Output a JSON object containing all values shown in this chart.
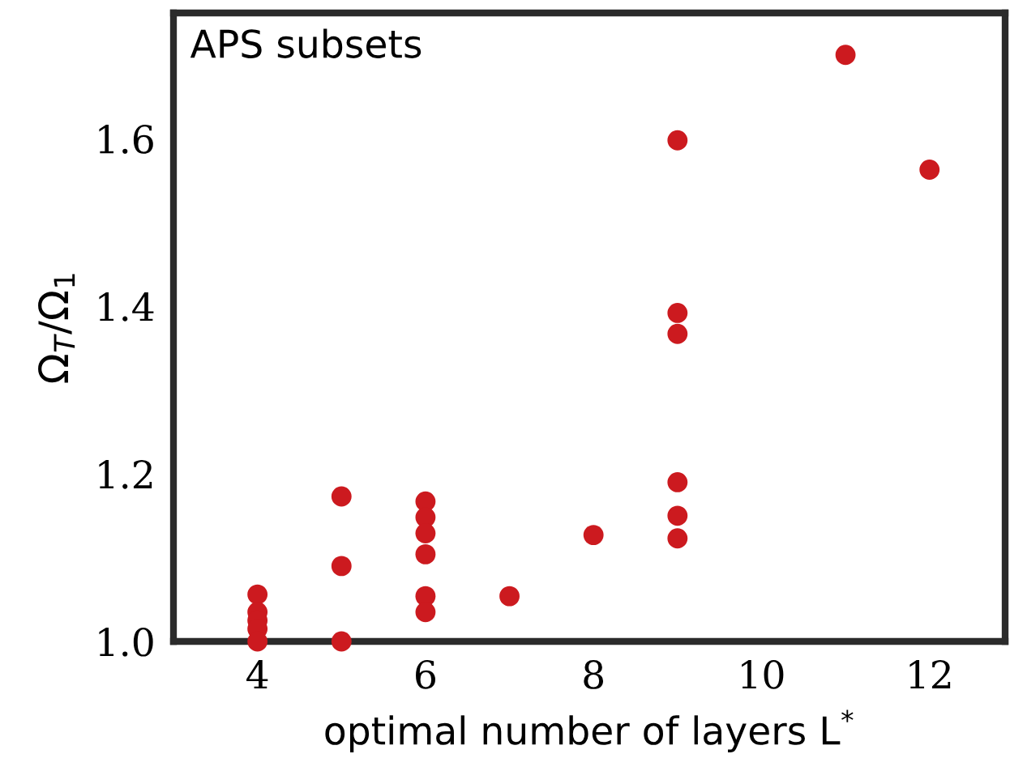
{
  "chart_data": {
    "type": "scatter",
    "xlabel": "optimal number of layers L$^{*}$",
    "ylabel": "Ω$_{T}$/Ω$_{1}$",
    "annotations": [
      "APS subsets"
    ],
    "series": [
      {
        "color": "#cc1a1f",
        "x": [
          4,
          4,
          4,
          4,
          4,
          5,
          5,
          5,
          6,
          6,
          6,
          6,
          6,
          6,
          7,
          8,
          9,
          9,
          9,
          9,
          9,
          9,
          11,
          12
        ],
        "values": [
          1.056,
          1.035,
          1.025,
          1.015,
          1.0,
          1.173,
          1.09,
          1.0,
          1.167,
          1.148,
          1.129,
          1.104,
          1.054,
          1.035,
          1.054,
          1.127,
          1.598,
          1.392,
          1.367,
          1.19,
          1.15,
          1.123,
          1.7,
          1.563
        ]
      }
    ],
    "xlim": [
      3,
      12.9
    ],
    "ylim": [
      1.0,
      1.75
    ],
    "xticks": [
      4,
      6,
      8,
      10,
      12
    ],
    "yticks": [
      {
        "value": 1,
        "label": "1.0"
      },
      1.2,
      1.4,
      1.6
    ],
    "grid": false,
    "legend": false,
    "marker": "circle"
  }
}
